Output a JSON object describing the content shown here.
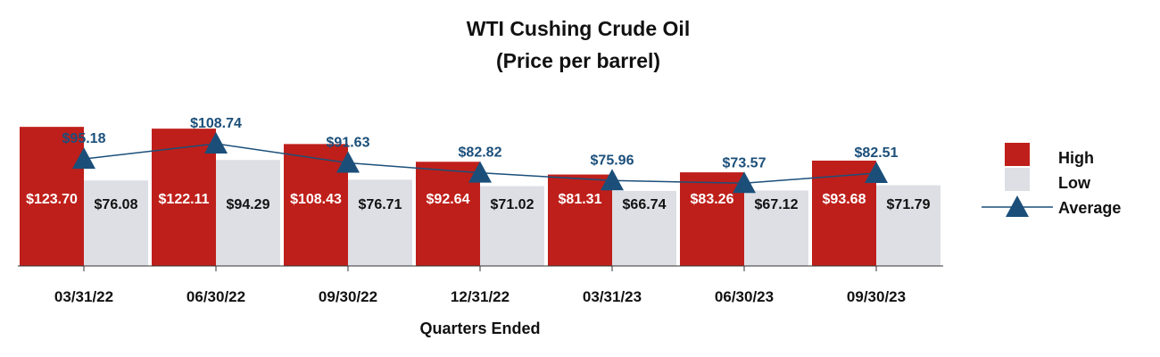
{
  "chart_data": {
    "type": "bar",
    "title": "WTI Cushing Crude Oil",
    "subtitle": "(Price per barrel)",
    "xlabel": "Quarters Ended",
    "ylabel": "",
    "ylim": [
      0,
      130
    ],
    "grid": false,
    "legend_position": "right",
    "categories": [
      "03/31/22",
      "06/30/22",
      "09/30/22",
      "12/31/22",
      "03/31/23",
      "06/30/23",
      "09/30/23"
    ],
    "series": [
      {
        "name": "High",
        "type": "bar",
        "color": "#bf1f1a",
        "values": [
          123.7,
          122.11,
          108.43,
          92.64,
          81.31,
          83.26,
          93.68
        ],
        "labels": [
          "$123.70",
          "$122.11",
          "$108.43",
          "$92.64",
          "$81.31",
          "$83.26",
          "$93.68"
        ]
      },
      {
        "name": "Low",
        "type": "bar",
        "color": "#dedfe5",
        "values": [
          76.08,
          94.29,
          76.71,
          71.02,
          66.74,
          67.12,
          71.79
        ],
        "labels": [
          "$76.08",
          "$94.29",
          "$76.71",
          "$71.02",
          "$66.74",
          "$67.12",
          "$71.79"
        ]
      },
      {
        "name": "Average",
        "type": "line",
        "marker": "triangle",
        "color": "#1b4f7a",
        "values": [
          95.18,
          108.74,
          91.63,
          82.82,
          75.96,
          73.57,
          82.51
        ],
        "labels": [
          "$95.18",
          "$108.74",
          "$91.63",
          "$82.82",
          "$75.96",
          "$73.57",
          "$82.51"
        ]
      }
    ]
  }
}
